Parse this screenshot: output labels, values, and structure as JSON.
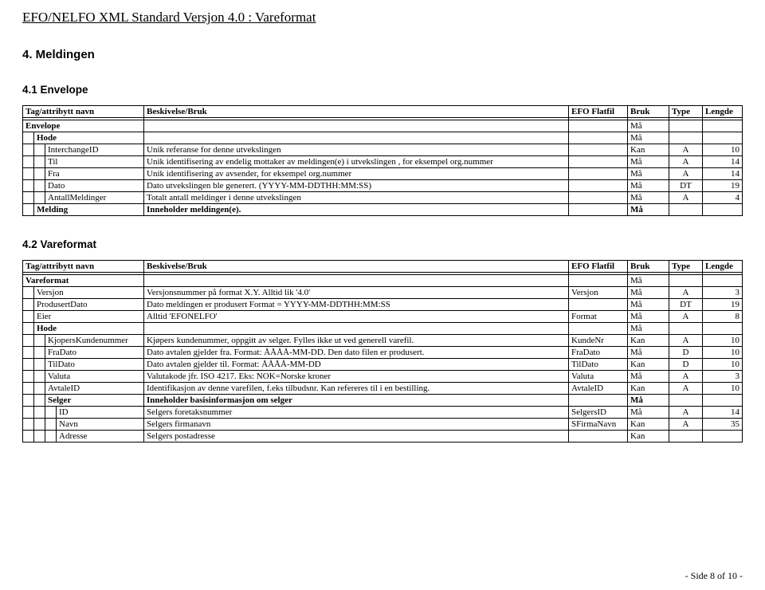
{
  "document_header": "EFO/NELFO XML Standard Versjon 4.0 : Vareformat",
  "section4": {
    "heading": "4. Meldingen"
  },
  "section41": {
    "heading": "4.1 Envelope",
    "cols": {
      "tag": "Tag/attribytt navn",
      "desc": "Beskivelse/Bruk",
      "flat": "EFO Flatfil",
      "bruk": "Bruk",
      "type": "Type",
      "len": "Lengde"
    },
    "rows": {
      "envelope": {
        "name": "Envelope",
        "bruk": "Må"
      },
      "hode": {
        "name": "Hode",
        "bruk": "Må"
      },
      "interchange": {
        "name": "InterchangeID",
        "desc": "Unik referanse for denne utvekslingen",
        "bruk": "Kan",
        "type": "A",
        "len": "10"
      },
      "til": {
        "name": "Til",
        "desc": "Unik identifisering av endelig mottaker av meldingen(e) i utvekslingen , for eksempel org.nummer",
        "bruk": "Må",
        "type": "A",
        "len": "14"
      },
      "fra": {
        "name": "Fra",
        "desc": "Unik identifisering av avsender, for eksempel org.nummer",
        "bruk": "Må",
        "type": "A",
        "len": "14"
      },
      "dato": {
        "name": "Dato",
        "desc": "Dato utvekslingen ble generert. (YYYY-MM-DDTHH:MM:SS)",
        "bruk": "Må",
        "type": "DT",
        "len": "19"
      },
      "antall": {
        "name": "AntallMeldinger",
        "desc": "Totalt antall meldinger i denne utvekslingen",
        "bruk": "Må",
        "type": "A",
        "len": "4"
      },
      "melding": {
        "name": "Melding",
        "desc": "Inneholder meldingen(e).",
        "bruk": "Må"
      }
    }
  },
  "section42": {
    "heading": "4.2 Vareformat",
    "cols": {
      "tag": "Tag/attribytt navn",
      "desc": "Beskivelse/Bruk",
      "flat": "EFO Flatfil",
      "bruk": "Bruk",
      "type": "Type",
      "len": "Lengde"
    },
    "rows": {
      "vareformat": {
        "name": "Vareformat",
        "bruk": "Må"
      },
      "versjon": {
        "name": "Versjon",
        "desc": "Versjonsnummer på format X.Y. Alltid lik '4.0'",
        "flat": "Versjon",
        "bruk": "Må",
        "type": "A",
        "len": "3"
      },
      "produsert": {
        "name": "ProdusertDato",
        "desc": "Dato meldingen er produsert Format = YYYY-MM-DDTHH:MM:SS",
        "bruk": "Må",
        "type": "DT",
        "len": "19"
      },
      "eier": {
        "name": "Eier",
        "desc": "Alltid 'EFONELFO'",
        "flat": "Format",
        "bruk": "Må",
        "type": "A",
        "len": "8"
      },
      "hode": {
        "name": "Hode",
        "bruk": "Må"
      },
      "kjoper": {
        "name": "KjopersKundenummer",
        "desc": "Kjøpers kundenummer, oppgitt av selger. Fylles ikke ut ved generell varefil.",
        "flat": "KundeNr",
        "bruk": "Kan",
        "type": "A",
        "len": "10"
      },
      "fradato": {
        "name": "FraDato",
        "desc": "Dato avtalen gjelder fra. Format: ÅÅÅÅ-MM-DD. Den dato filen er produsert.",
        "flat": "FraDato",
        "bruk": "Må",
        "type": "D",
        "len": "10"
      },
      "tildato": {
        "name": "TilDato",
        "desc": "Dato avtalen gjelder til. Format: ÅÅÅÅ-MM-DD",
        "flat": "TilDato",
        "bruk": "Kan",
        "type": "D",
        "len": "10"
      },
      "valuta": {
        "name": "Valuta",
        "desc": "Valutakode jfr. ISO 4217. Eks: NOK=Norske kroner",
        "flat": "Valuta",
        "bruk": "Må",
        "type": "A",
        "len": "3"
      },
      "avtaleid": {
        "name": "AvtaleID",
        "desc": "Identifikasjon av denne varefilen, f.eks tilbudsnr. Kan refereres til i en bestilling.",
        "flat": "AvtaleID",
        "bruk": "Kan",
        "type": "A",
        "len": "10"
      },
      "selger": {
        "name": "Selger",
        "desc": "Inneholder basisinformasjon om selger",
        "bruk": "Må"
      },
      "id": {
        "name": "ID",
        "desc": "Selgers foretaksnummer",
        "flat": "SelgersID",
        "bruk": "Må",
        "type": "A",
        "len": "14"
      },
      "navn": {
        "name": "Navn",
        "desc": "Selgers firmanavn",
        "flat": "SFirmaNavn",
        "bruk": "Kan",
        "type": "A",
        "len": "35"
      },
      "adresse": {
        "name": "Adresse",
        "desc": "Selgers postadresse",
        "bruk": "Kan"
      }
    }
  },
  "footer": "- Side 8 of 10 -"
}
